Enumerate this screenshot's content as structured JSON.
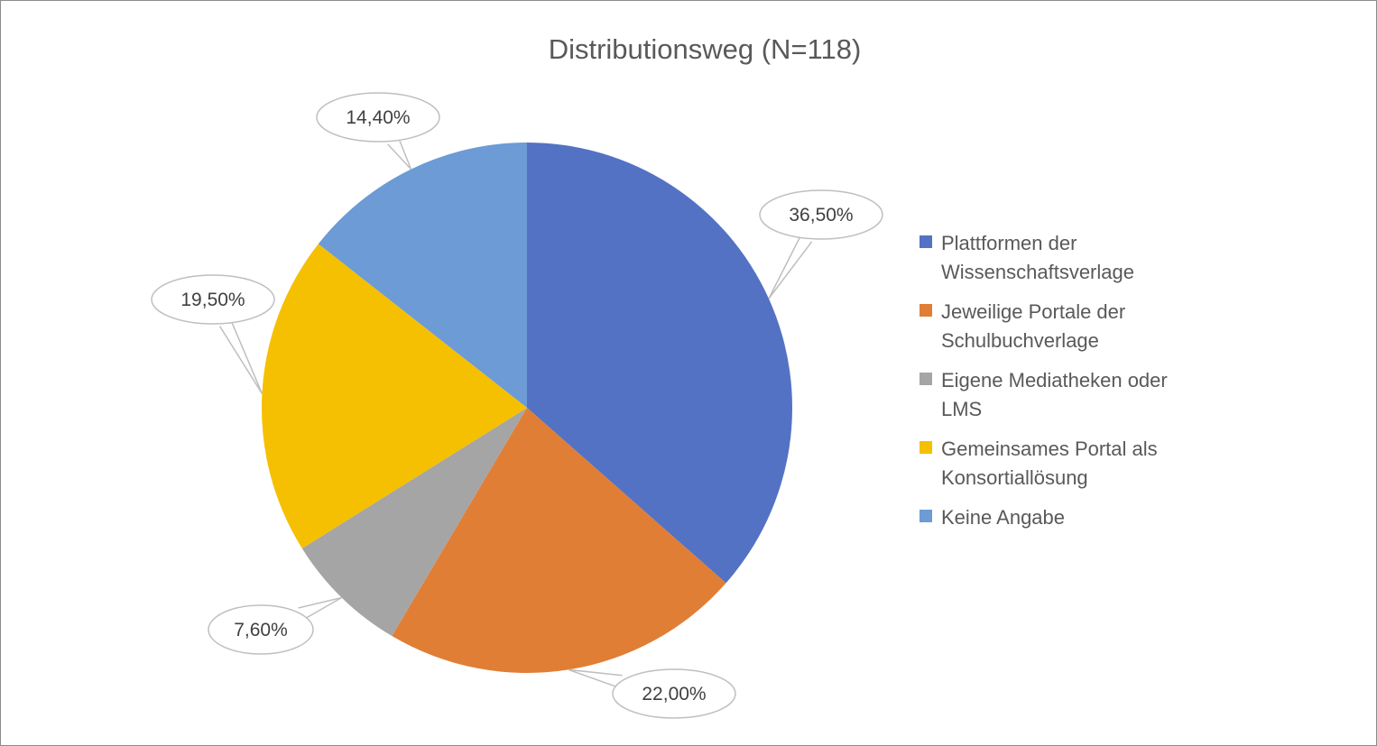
{
  "chart_data": {
    "type": "pie",
    "title": "Distributionsweg (N=118)",
    "slices": [
      {
        "label_lines": [
          "Plattformen der",
          "Wissenschaftsverlage"
        ],
        "value": 36.5,
        "data_label": "36,50%",
        "color": "#5472C4"
      },
      {
        "label_lines": [
          "Jeweilige Portale der",
          "Schulbuchverlage"
        ],
        "value": 22.0,
        "data_label": "22,00%",
        "color": "#E07E35"
      },
      {
        "label_lines": [
          "Eigene Mediatheken oder",
          "LMS"
        ],
        "value": 7.6,
        "data_label": "7,60%",
        "color": "#A5A5A5"
      },
      {
        "label_lines": [
          "Gemeinsames Portal als",
          "Konsortiallösung"
        ],
        "value": 19.5,
        "data_label": "19,50%",
        "color": "#F5C002"
      },
      {
        "label_lines": [
          "Keine Angabe"
        ],
        "value": 14.4,
        "data_label": "14,40%",
        "color": "#6C9BD5"
      }
    ],
    "legend_position": "right",
    "data_label_style": "callout"
  }
}
